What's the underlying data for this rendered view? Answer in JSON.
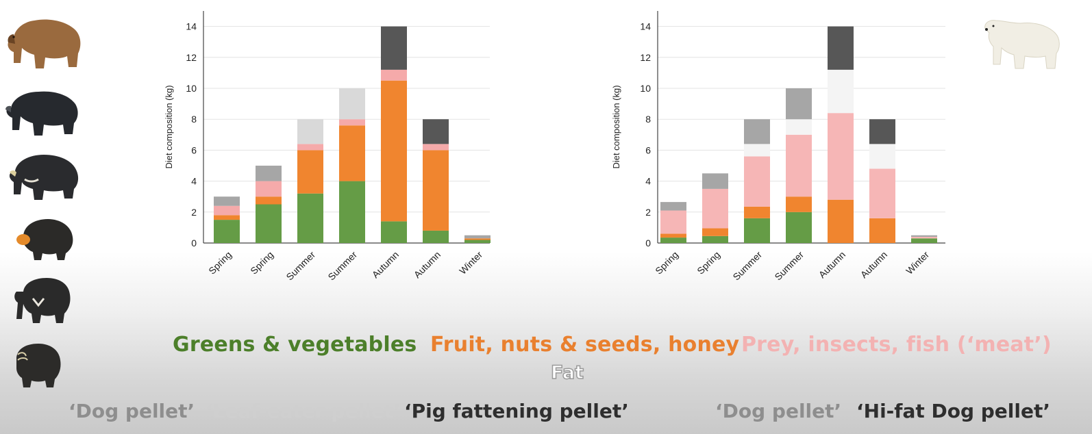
{
  "colors": {
    "greens": "#659c46",
    "fruit": "#f0852f",
    "meat": "#f5aaaa",
    "meat_light": "#f6b6b6",
    "fat": "#f4f4f4",
    "dog_pellet": "#9b9b9b",
    "leaf_pellet": "#dddddd",
    "dark_pellet": "#575757"
  },
  "legend": {
    "greens": "Greens & vegetables",
    "fruit": "Fruit, nuts & seeds, honey",
    "meat": "Prey, insects, fish (‘meat’)",
    "fat": "Fat"
  },
  "pellets_left": {
    "dog": "‘Dog pellet’",
    "leaf": "‘Leaf-eater pellet’",
    "pig": "‘Pig fattening pellet’"
  },
  "pellets_right": {
    "dog": "‘Dog pellet’",
    "hifat": "‘Hi-fat Dog pellet’"
  },
  "bear_icons": [
    "brown-bear-icon",
    "black-bear-icon",
    "moon-bear-icon",
    "sun-bear-icon",
    "sloth-bear-icon",
    "spectacled-bear-icon",
    "polar-bear-icon"
  ],
  "chart_data": [
    {
      "type": "bar",
      "stacked": true,
      "ylabel": "Diet composition (kg)",
      "ylim": [
        0,
        15
      ],
      "yticks": [
        0,
        2,
        4,
        6,
        8,
        10,
        12,
        14
      ],
      "grid": true,
      "categories": [
        "Spring",
        "Spring",
        "Summer",
        "Summer",
        "Autumn",
        "Autumn",
        "Winter"
      ],
      "series": [
        {
          "name": "Greens & vegetables",
          "color": "#659c46",
          "values": [
            1.5,
            2.5,
            3.2,
            4.0,
            1.4,
            0.8,
            0.2
          ]
        },
        {
          "name": "Fruit, nuts & seeds, honey",
          "color": "#f0852f",
          "values": [
            0.3,
            0.5,
            2.8,
            3.6,
            9.1,
            5.2,
            0.1
          ]
        },
        {
          "name": "Prey, insects, fish (‘meat’)",
          "color": "#f5aaaa",
          "values": [
            0.6,
            1.0,
            0.4,
            0.4,
            0.7,
            0.4,
            0.0
          ]
        },
        {
          "name": "‘Dog pellet’",
          "color": "#a6a6a6",
          "values": [
            0.6,
            1.0,
            0.0,
            0.0,
            0.0,
            0.0,
            0.2
          ]
        },
        {
          "name": "‘Leaf-eater pellet’",
          "color": "#d9d9d9",
          "values": [
            0.0,
            0.0,
            1.6,
            2.0,
            0.0,
            0.0,
            0.0
          ]
        },
        {
          "name": "‘Pig fattening pellet’",
          "color": "#575757",
          "values": [
            0.0,
            0.0,
            0.0,
            0.0,
            2.8,
            1.6,
            0.0
          ]
        }
      ]
    },
    {
      "type": "bar",
      "stacked": true,
      "ylabel": "Diet composition (kg)",
      "ylim": [
        0,
        15
      ],
      "yticks": [
        0,
        2,
        4,
        6,
        8,
        10,
        12,
        14
      ],
      "grid": true,
      "categories": [
        "Spring",
        "Spring",
        "Summer",
        "Summer",
        "Autumn",
        "Autumn",
        "Winter"
      ],
      "series": [
        {
          "name": "Greens & vegetables",
          "color": "#659c46",
          "values": [
            0.35,
            0.45,
            1.6,
            2.0,
            0.0,
            0.0,
            0.3
          ]
        },
        {
          "name": "Fruit, nuts & seeds, honey",
          "color": "#f0852f",
          "values": [
            0.25,
            0.5,
            0.75,
            1.0,
            2.8,
            1.6,
            0.0
          ]
        },
        {
          "name": "Prey, insects, fish (‘meat’)",
          "color": "#f6b6b6",
          "values": [
            1.5,
            2.55,
            3.25,
            4.0,
            5.6,
            3.2,
            0.1
          ]
        },
        {
          "name": "Fat",
          "color": "#f4f4f4",
          "values": [
            0.0,
            0.0,
            0.8,
            1.0,
            2.8,
            1.6,
            0.0
          ]
        },
        {
          "name": "‘Dog pellet’",
          "color": "#a6a6a6",
          "values": [
            0.55,
            1.0,
            1.6,
            2.0,
            0.0,
            0.0,
            0.1
          ]
        },
        {
          "name": "‘Hi-fat Dog pellet’",
          "color": "#575757",
          "values": [
            0.0,
            0.0,
            0.0,
            0.0,
            2.8,
            1.6,
            0.0
          ]
        }
      ]
    }
  ]
}
